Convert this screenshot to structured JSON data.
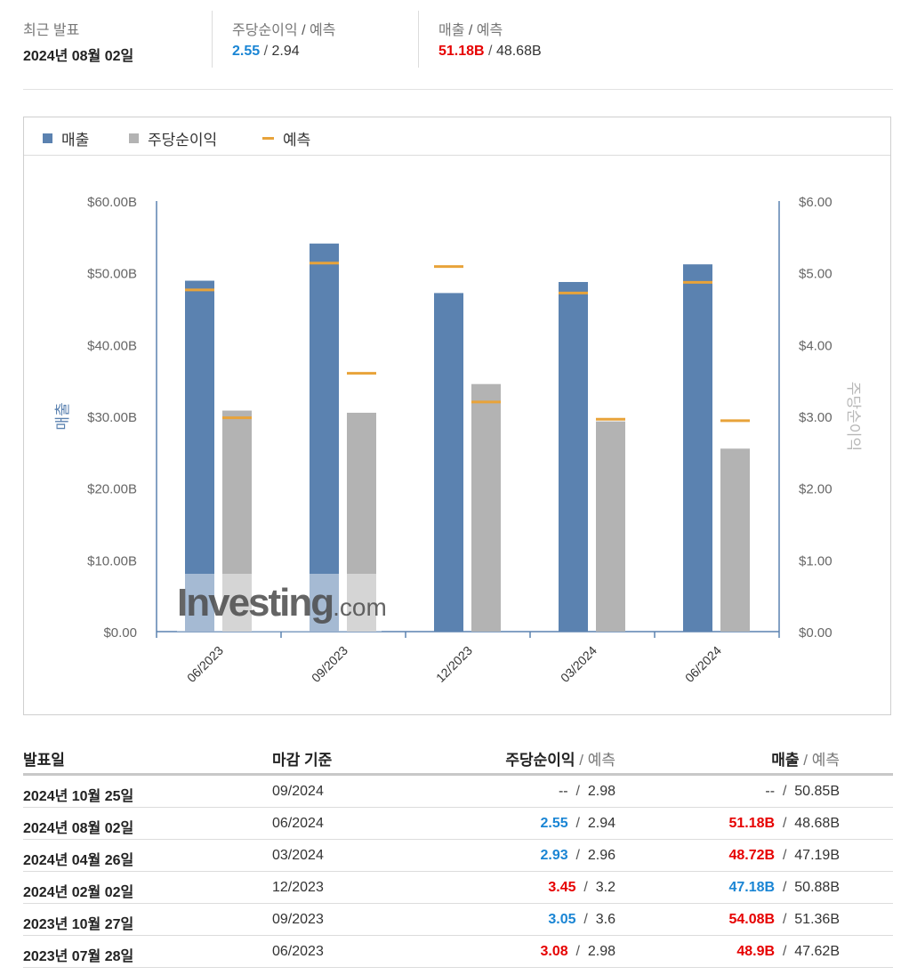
{
  "summary": {
    "latest_label": "최근 발표",
    "latest_date": "2024년 08월 02일",
    "eps_label": "주당순이익",
    "eps_forecast_label": "예측",
    "eps_actual": "2.55",
    "eps_forecast": "2.94",
    "rev_label": "매출",
    "rev_forecast_label": "예측",
    "rev_actual": "51.18B",
    "rev_forecast": "48.68B"
  },
  "legend": {
    "revenue": "매출",
    "eps": "주당순이익",
    "forecast": "예측"
  },
  "colors": {
    "revenue": "#5b82b0",
    "eps": "#b3b3b3",
    "forecast": "#e8a33a",
    "beat": "#1a85d4",
    "miss": "#e60000"
  },
  "chart_data": {
    "type": "bar",
    "categories": [
      "06/2023",
      "09/2023",
      "12/2023",
      "03/2024",
      "06/2024"
    ],
    "series": [
      {
        "name": "매출",
        "axis": "left",
        "values": [
          48.9,
          54.08,
          47.18,
          48.72,
          51.18
        ]
      },
      {
        "name": "주당순이익",
        "axis": "right",
        "values": [
          3.08,
          3.05,
          3.45,
          2.93,
          2.55
        ]
      }
    ],
    "forecast": {
      "revenue": [
        47.62,
        51.36,
        50.88,
        47.19,
        48.68
      ],
      "eps": [
        2.98,
        3.6,
        3.2,
        2.96,
        2.94
      ]
    },
    "ylabel": "매출",
    "y2label": "주당순이익",
    "ylim": [
      0,
      60
    ],
    "y2lim": [
      0,
      6
    ],
    "yticks": [
      "$0.00",
      "$10.00B",
      "$20.00B",
      "$30.00B",
      "$40.00B",
      "$50.00B",
      "$60.00B"
    ],
    "y2ticks": [
      "$0.00",
      "$1.00",
      "$2.00",
      "$3.00",
      "$4.00",
      "$5.00",
      "$6.00"
    ],
    "watermark": {
      "brand": "Investing",
      "suffix": ".com"
    }
  },
  "table": {
    "headers": {
      "date": "발표일",
      "period": "마감 기준",
      "eps": "주당순이익",
      "eps_forecast": "예측",
      "rev": "매출",
      "rev_forecast": "예측"
    },
    "rows": [
      {
        "date": "2024년 10월 25일",
        "period": "09/2024",
        "eps": "--",
        "eps_forecast": "2.98",
        "eps_class": "dash",
        "rev": "--",
        "rev_forecast": "50.85B",
        "rev_class": "dash"
      },
      {
        "date": "2024년 08월 02일",
        "period": "06/2024",
        "eps": "2.55",
        "eps_forecast": "2.94",
        "eps_class": "blue",
        "rev": "51.18B",
        "rev_forecast": "48.68B",
        "rev_class": "red"
      },
      {
        "date": "2024년 04월 26일",
        "period": "03/2024",
        "eps": "2.93",
        "eps_forecast": "2.96",
        "eps_class": "blue",
        "rev": "48.72B",
        "rev_forecast": "47.19B",
        "rev_class": "red"
      },
      {
        "date": "2024년 02월 02일",
        "period": "12/2023",
        "eps": "3.45",
        "eps_forecast": "3.2",
        "eps_class": "red",
        "rev": "47.18B",
        "rev_forecast": "50.88B",
        "rev_class": "blue"
      },
      {
        "date": "2023년 10월 27일",
        "period": "09/2023",
        "eps": "3.05",
        "eps_forecast": "3.6",
        "eps_class": "blue",
        "rev": "54.08B",
        "rev_forecast": "51.36B",
        "rev_class": "red"
      },
      {
        "date": "2023년 07월 28일",
        "period": "06/2023",
        "eps": "3.08",
        "eps_forecast": "2.98",
        "eps_class": "red",
        "rev": "48.9B",
        "rev_forecast": "47.62B",
        "rev_class": "red"
      }
    ]
  }
}
